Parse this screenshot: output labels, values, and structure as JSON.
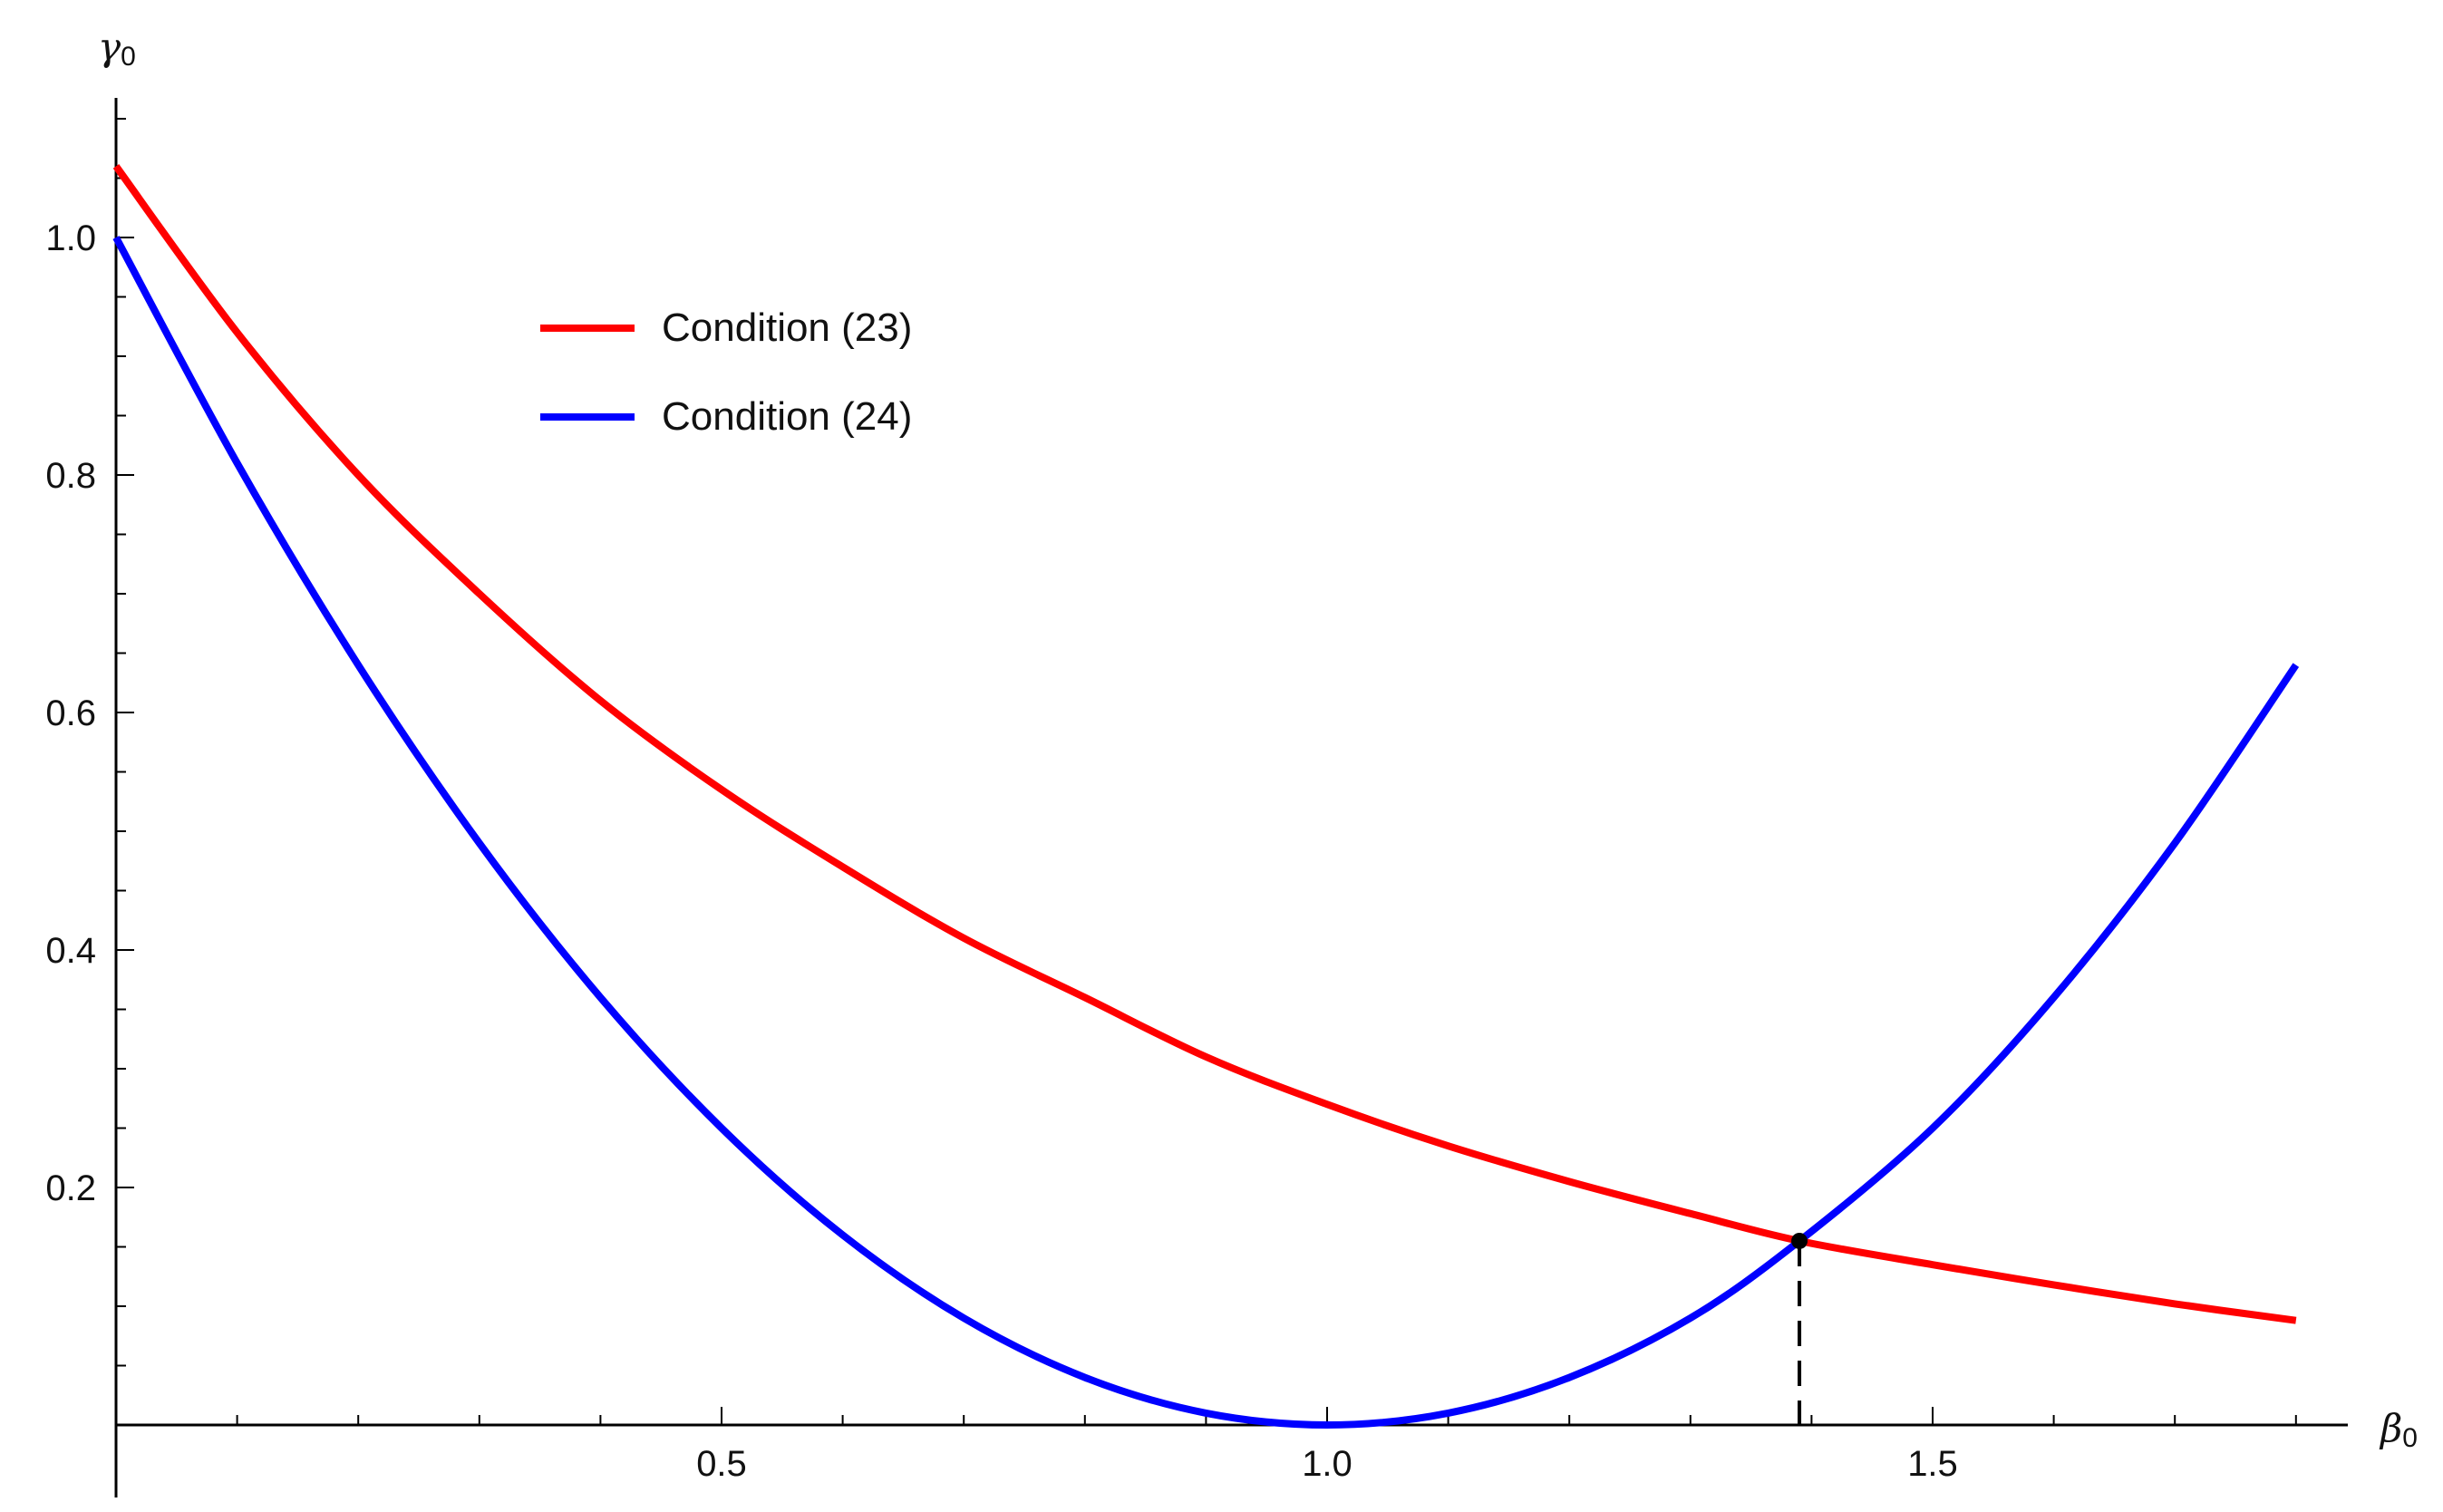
{
  "chart_data": {
    "type": "line",
    "xlabel": "β",
    "xlabel_sub": "0",
    "ylabel": "γ",
    "ylabel_sub": "0",
    "xlim": [
      0,
      1.83
    ],
    "ylim": [
      0,
      1.1
    ],
    "x_ticks": [
      0.5,
      1.0,
      1.5
    ],
    "x_tick_labels": [
      "0.5",
      "1.0",
      "1.5"
    ],
    "y_ticks": [
      0.2,
      0.4,
      0.6,
      0.8,
      1.0
    ],
    "y_tick_labels": [
      "0.2",
      "0.4",
      "0.6",
      "0.8",
      "1.0"
    ],
    "grid": false,
    "legend_position": "top-left",
    "series": [
      {
        "name": "Condition (23)",
        "color": "#ff0000",
        "x": [
          0.0,
          0.1,
          0.2,
          0.3,
          0.4,
          0.5,
          0.6,
          0.7,
          0.8,
          0.9,
          1.0,
          1.1,
          1.2,
          1.3,
          1.39,
          1.5,
          1.6,
          1.7,
          1.8
        ],
        "y": [
          1.06,
          0.92,
          0.8,
          0.7,
          0.61,
          0.535,
          0.47,
          0.41,
          0.36,
          0.31,
          0.27,
          0.235,
          0.205,
          0.178,
          0.155,
          0.135,
          0.118,
          0.102,
          0.088
        ]
      },
      {
        "name": "Condition (24)",
        "color": "#0000ff",
        "x": [
          0.0,
          0.1,
          0.2,
          0.3,
          0.4,
          0.5,
          0.6,
          0.7,
          0.8,
          0.9,
          1.0,
          1.1,
          1.2,
          1.3,
          1.39,
          1.5,
          1.6,
          1.7,
          1.8
        ],
        "y": [
          1.0,
          0.81,
          0.64,
          0.49,
          0.36,
          0.25,
          0.16,
          0.09,
          0.04,
          0.01,
          0.0,
          0.01,
          0.04,
          0.09,
          0.155,
          0.25,
          0.36,
          0.49,
          0.64
        ]
      }
    ],
    "annotations": {
      "intersection_point": {
        "x": 1.39,
        "y": 0.155,
        "color": "#000000"
      },
      "dashed_drop_line": true
    }
  }
}
